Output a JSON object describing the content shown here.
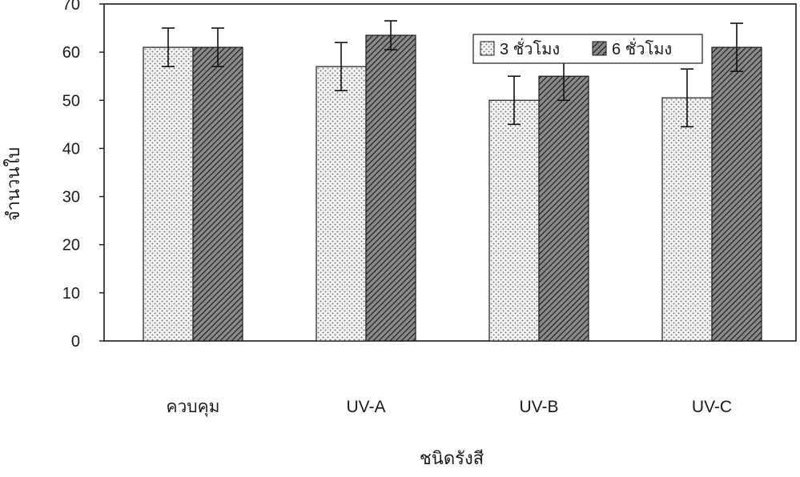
{
  "chart_data": {
    "type": "bar",
    "title": "",
    "xlabel": "ชนิดรังสี",
    "ylabel": "จำนวนใบ",
    "ylim": [
      0,
      70
    ],
    "yticks": [
      0,
      10,
      20,
      30,
      40,
      50,
      60,
      70
    ],
    "categories": [
      "ควบคุม",
      "UV-A",
      "UV-B",
      "UV-C"
    ],
    "series": [
      {
        "name": "3 ชั่วโมง",
        "values": [
          61,
          57,
          50,
          50.5
        ],
        "errors": [
          4,
          5,
          5,
          6
        ],
        "pattern": "dots"
      },
      {
        "name": "6 ชั่วโมง",
        "values": [
          61,
          63.5,
          55,
          61
        ],
        "errors": [
          4,
          3,
          5,
          5
        ],
        "pattern": "hatch"
      }
    ],
    "legend": {
      "placement": "top-right"
    },
    "grid": false
  }
}
